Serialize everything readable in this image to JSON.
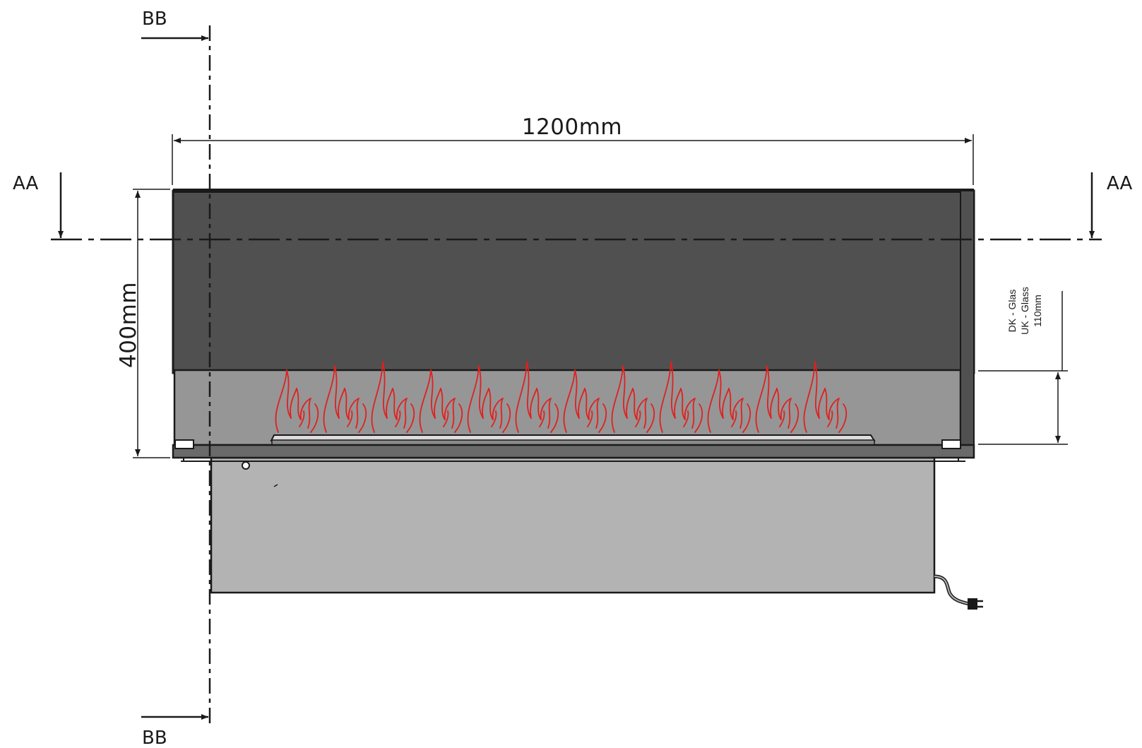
{
  "drawing": {
    "dimensions": {
      "width_label": "1200mm",
      "height_label": "400mm",
      "glass_label_line1": "DK - Glas",
      "glass_label_line2": "UK - Glass",
      "glass_label_line3": "110mm"
    },
    "section_markers": {
      "aa_left": "AA",
      "aa_right": "AA",
      "bb_top": "BB",
      "bb_bottom": "BB"
    },
    "colors": {
      "hood": "#505050",
      "glass": "#969696",
      "firebox": "#b3b3b3",
      "flame": "#e02020",
      "outline": "#1a1a1a"
    },
    "flame_count": 12
  }
}
